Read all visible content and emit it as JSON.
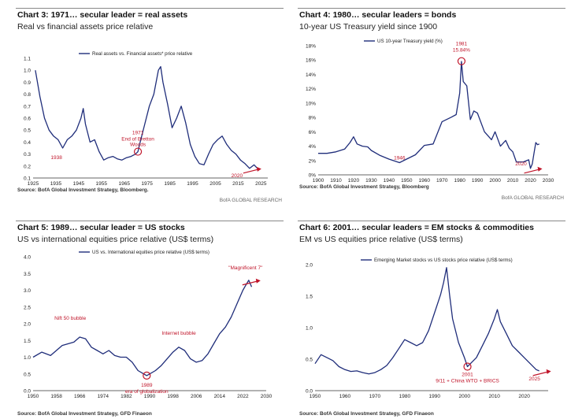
{
  "brand": "BofA GLOBAL RESEARCH",
  "colors": {
    "line": "#1f2d7a",
    "accent": "#c0152a",
    "text": "#222"
  },
  "chart_data": [
    {
      "type": "line",
      "title": "Chart 3: 1971… secular leader = real assets",
      "subtitle": "Real vs financial assets price relative",
      "legend": "Real assets vs. Financial assets* price relative",
      "source": "Source: BofA Global Investment Strategy, Bloomberg.",
      "xticks": [
        1925,
        1935,
        1945,
        1955,
        1965,
        1975,
        1985,
        1995,
        2005,
        2015,
        2025
      ],
      "yticks": [
        "0.1",
        "0.2",
        "0.3",
        "0.4",
        "0.5",
        "0.6",
        "0.7",
        "0.8",
        "0.9",
        "1.0",
        "1.1"
      ],
      "xlim": [
        1925,
        2028
      ],
      "ylim": [
        0.1,
        1.1
      ],
      "series": [
        {
          "x": [
            1926,
            1928,
            1930,
            1932,
            1934,
            1936,
            1938,
            1940,
            1942,
            1944,
            1946,
            1947,
            1948,
            1950,
            1952,
            1954,
            1956,
            1958,
            1960,
            1962,
            1964,
            1966,
            1968,
            1970,
            1971,
            1972,
            1974,
            1976,
            1978,
            1980,
            1981,
            1982,
            1984,
            1986,
            1988,
            1990,
            1992,
            1994,
            1996,
            1998,
            2000,
            2002,
            2004,
            2006,
            2008,
            2010,
            2012,
            2014,
            2016,
            2018,
            2020,
            2022,
            2024
          ],
          "y": [
            1.0,
            0.78,
            0.6,
            0.5,
            0.45,
            0.42,
            0.35,
            0.42,
            0.45,
            0.5,
            0.6,
            0.68,
            0.55,
            0.4,
            0.42,
            0.32,
            0.25,
            0.27,
            0.28,
            0.26,
            0.25,
            0.27,
            0.28,
            0.3,
            0.32,
            0.4,
            0.55,
            0.7,
            0.8,
            1.0,
            1.03,
            0.9,
            0.72,
            0.52,
            0.6,
            0.7,
            0.56,
            0.38,
            0.28,
            0.22,
            0.21,
            0.3,
            0.38,
            0.42,
            0.45,
            0.38,
            0.33,
            0.3,
            0.25,
            0.22,
            0.18,
            0.21,
            0.17
          ]
        }
      ],
      "annotations": [
        {
          "label": "1938",
          "x": 1938,
          "y": 0.35
        },
        {
          "label": "1971",
          "x": 1971,
          "y": 0.32
        },
        {
          "label": "End of Bretton",
          "x": 1971,
          "y": 0.32
        },
        {
          "label": "Woods",
          "x": 1971,
          "y": 0.32
        },
        {
          "label": "2020",
          "x": 2020,
          "y": 0.18
        }
      ]
    },
    {
      "type": "line",
      "title": "Chart 4: 1980… secular leaders = bonds",
      "subtitle": "10-year US Treasury yield since 1900",
      "legend": "US 10-year Treasury yield (%)",
      "source": "Source: BofA Global Investment Strategy, Bloomberg",
      "xticks": [
        1900,
        1910,
        1920,
        1930,
        1940,
        1950,
        1960,
        1970,
        1980,
        1990,
        2000,
        2010,
        2020,
        2030
      ],
      "yticks": [
        "0%",
        "2%",
        "4%",
        "6%",
        "8%",
        "10%",
        "12%",
        "14%",
        "16%",
        "18%"
      ],
      "xlim": [
        1900,
        2030
      ],
      "ylim": [
        0,
        18
      ],
      "series": [
        {
          "x": [
            1900,
            1905,
            1910,
            1915,
            1918,
            1920,
            1922,
            1925,
            1928,
            1930,
            1935,
            1940,
            1946,
            1950,
            1955,
            1960,
            1965,
            1970,
            1975,
            1978,
            1980,
            1981,
            1982,
            1984,
            1986,
            1988,
            1990,
            1994,
            1998,
            2000,
            2003,
            2006,
            2008,
            2010,
            2012,
            2016,
            2019,
            2020,
            2021,
            2022,
            2023,
            2024,
            2025
          ],
          "y": [
            3.0,
            3.0,
            3.2,
            3.6,
            4.5,
            5.3,
            4.3,
            4.0,
            3.9,
            3.4,
            2.7,
            2.2,
            1.7,
            2.2,
            2.8,
            4.1,
            4.3,
            7.4,
            8.0,
            8.4,
            11.4,
            15.8,
            13.0,
            12.4,
            7.7,
            8.9,
            8.6,
            6.0,
            4.9,
            6.0,
            4.0,
            4.8,
            3.7,
            3.2,
            1.8,
            1.8,
            2.1,
            0.9,
            1.5,
            3.0,
            4.5,
            4.2,
            4.3
          ]
        }
      ],
      "annotations": [
        {
          "label": "1981",
          "x": 1981,
          "y": 15.84
        },
        {
          "label": "15.84%",
          "x": 1981,
          "y": 15.84
        },
        {
          "label": "1946",
          "x": 1946,
          "y": 1.7
        },
        {
          "label": "2020",
          "x": 2020,
          "y": 0.9
        }
      ]
    },
    {
      "type": "line",
      "title": "Chart 5: 1989… secular leader = US stocks",
      "subtitle": "US vs international equities price relative (US$ terms)",
      "legend": "US vs. International equities price relative (US$ terms)",
      "source": "Source: BofA Global Investment Strategy, GFD Finaeon",
      "xticks": [
        1950,
        1958,
        1966,
        1974,
        1982,
        1990,
        1998,
        2006,
        2014,
        2022,
        2030
      ],
      "yticks": [
        "0.0",
        "0.5",
        "1.0",
        "1.5",
        "2.0",
        "2.5",
        "3.0",
        "3.5",
        "4.0"
      ],
      "xlim": [
        1950,
        2030
      ],
      "ylim": [
        0,
        4
      ],
      "series": [
        {
          "x": [
            1950,
            1953,
            1956,
            1958,
            1960,
            1962,
            1964,
            1966,
            1968,
            1970,
            1972,
            1974,
            1976,
            1978,
            1980,
            1982,
            1984,
            1986,
            1988,
            1989,
            1990,
            1992,
            1994,
            1996,
            1998,
            2000,
            2002,
            2004,
            2006,
            2008,
            2010,
            2012,
            2014,
            2016,
            2018,
            2020,
            2022,
            2023,
            2024,
            2025
          ],
          "y": [
            1.0,
            1.15,
            1.05,
            1.2,
            1.35,
            1.4,
            1.45,
            1.6,
            1.55,
            1.3,
            1.2,
            1.1,
            1.2,
            1.05,
            1.0,
            1.0,
            0.85,
            0.6,
            0.5,
            0.45,
            0.5,
            0.6,
            0.75,
            0.95,
            1.15,
            1.3,
            1.2,
            0.95,
            0.85,
            0.9,
            1.1,
            1.4,
            1.7,
            1.9,
            2.2,
            2.6,
            3.0,
            3.15,
            3.3,
            3.1
          ]
        }
      ],
      "annotations": [
        {
          "label": "Nift 50 bubble",
          "x": 1966,
          "y": 1.6
        },
        {
          "label": "1989",
          "x": 1989,
          "y": 0.45
        },
        {
          "label": "era of globalization",
          "x": 1989,
          "y": 0.45
        },
        {
          "label": "Internet bubble",
          "x": 2000,
          "y": 1.3
        },
        {
          "label": "\"Magnificent 7\"",
          "x": 2024,
          "y": 3.3
        }
      ]
    },
    {
      "type": "line",
      "title": "Chart 6: 2001… secular leaders = EM stocks & commodities",
      "subtitle": "EM vs US equities price relative (US$ terms)",
      "legend": "Emerging Market stocks vs US stocks price relative (US$ terms)",
      "source": "Source: BofA Global Investment Strategy, GFD Finaeon",
      "xticks": [
        1950,
        1960,
        1970,
        1980,
        1990,
        2000,
        2010,
        2020
      ],
      "yticks": [
        "0.0",
        "0.5",
        "1.0",
        "1.5",
        "2.0"
      ],
      "xlim": [
        1950,
        2028
      ],
      "ylim": [
        0,
        2.1
      ],
      "series": [
        {
          "x": [
            1950,
            1952,
            1954,
            1956,
            1958,
            1960,
            1962,
            1964,
            1966,
            1968,
            1970,
            1972,
            1974,
            1976,
            1978,
            1980,
            1982,
            1984,
            1986,
            1988,
            1990,
            1992,
            1993,
            1994,
            1995,
            1996,
            1998,
            2000,
            2001,
            2002,
            2004,
            2006,
            2008,
            2010,
            2011,
            2012,
            2014,
            2016,
            2018,
            2020,
            2022,
            2024,
            2025
          ],
          "y": [
            0.45,
            0.6,
            0.55,
            0.5,
            0.4,
            0.35,
            0.32,
            0.33,
            0.3,
            0.28,
            0.3,
            0.35,
            0.42,
            0.55,
            0.7,
            0.85,
            0.8,
            0.75,
            0.8,
            1.0,
            1.3,
            1.6,
            1.8,
            2.05,
            1.6,
            1.2,
            0.8,
            0.55,
            0.4,
            0.45,
            0.55,
            0.75,
            0.95,
            1.2,
            1.35,
            1.15,
            0.95,
            0.75,
            0.65,
            0.55,
            0.45,
            0.35,
            0.33
          ]
        }
      ],
      "annotations": [
        {
          "label": "2001",
          "x": 2001,
          "y": 0.4
        },
        {
          "label": "9/11 + China WTO + BRICS",
          "x": 2001,
          "y": 0.4
        },
        {
          "label": "2025",
          "x": 2025,
          "y": 0.33
        }
      ]
    }
  ]
}
